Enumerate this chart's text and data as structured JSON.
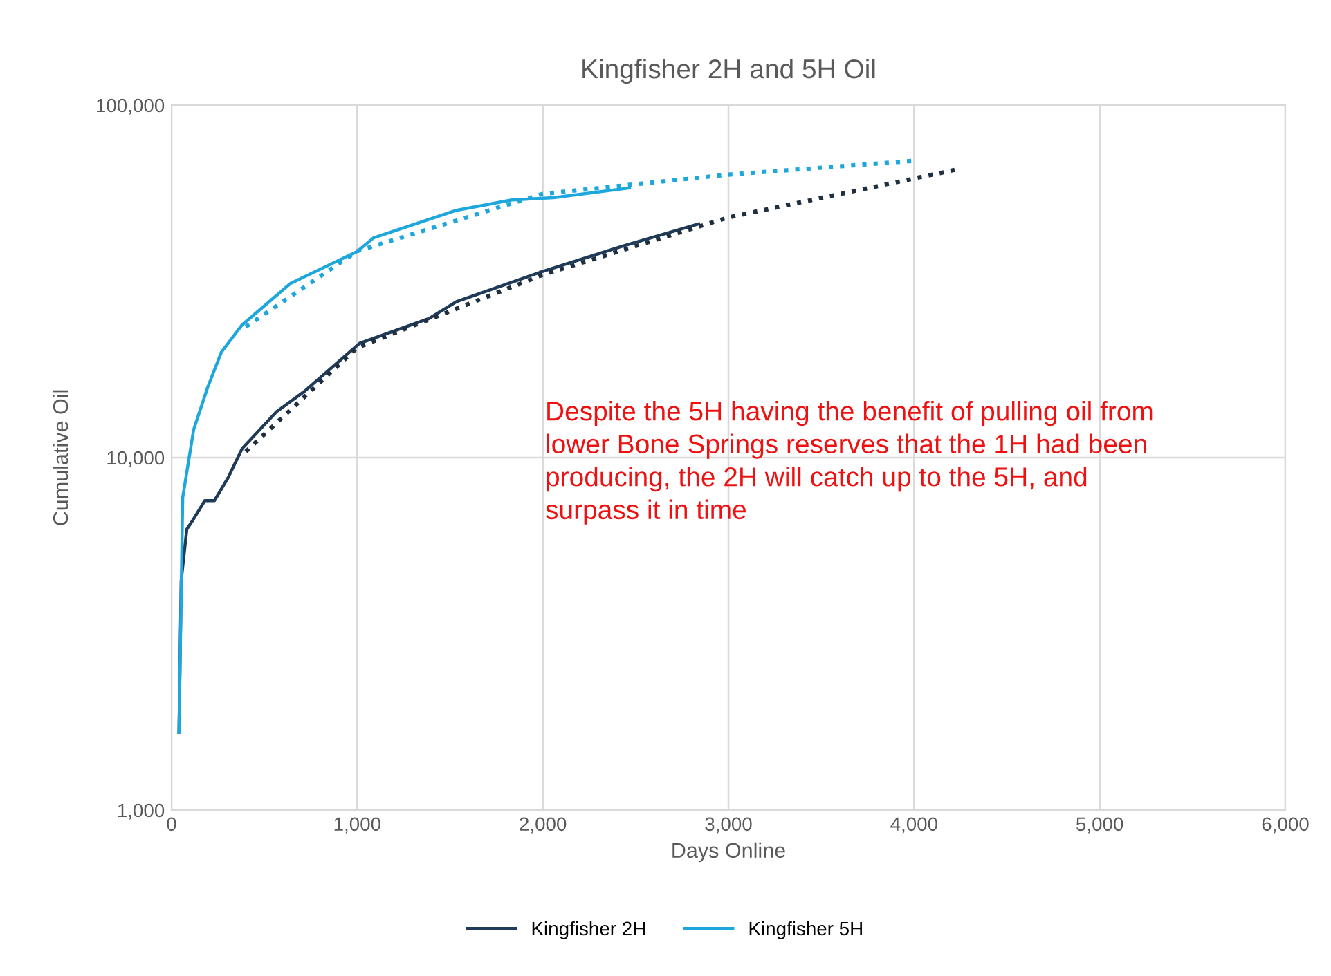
{
  "chart_data": {
    "type": "line",
    "title": "Kingfisher 2H and 5H Oil",
    "xlabel": "Days Online",
    "ylabel": "Cumulative Oil",
    "log": "y",
    "grid": true,
    "legend": "bottom",
    "xlim": [
      0,
      6000
    ],
    "xticks": [
      {
        "value": 0,
        "label": "0"
      },
      {
        "value": 1000,
        "label": "1,000"
      },
      {
        "value": 2000,
        "label": "2,000"
      },
      {
        "value": 3000,
        "label": "3,000"
      },
      {
        "value": 4000,
        "label": "4,000"
      },
      {
        "value": 5000,
        "label": "5,000"
      },
      {
        "value": 6000,
        "label": "6,000"
      }
    ],
    "ylim": [
      1000,
      100000
    ],
    "yticks": [
      {
        "value": 1000,
        "label": "1,000"
      },
      {
        "value": 10000,
        "label": "10,000"
      },
      {
        "value": 100000,
        "label": "100,000"
      }
    ],
    "series": [
      {
        "name": "Kingfisher 2H",
        "color": "#1f3b57",
        "x": [
          40,
          52,
          82,
          119,
          179,
          231,
          306,
          380,
          566,
          715,
          1013,
          1386,
          1535,
          1982,
          2429,
          2839
        ],
        "values": [
          1660,
          4480,
          6260,
          6700,
          7550,
          7550,
          8800,
          10600,
          13500,
          15400,
          21100,
          24800,
          27700,
          33500,
          39800,
          46000
        ]
      },
      {
        "name": "Kingfisher 5H",
        "color": "#1ea7dc",
        "x": [
          40,
          60,
          119,
          194,
          268,
          380,
          641,
          999,
          1088,
          1535,
          1833,
          2057,
          2467
        ],
        "values": [
          1660,
          7700,
          12000,
          15800,
          19900,
          23800,
          31200,
          38400,
          42000,
          50300,
          53800,
          54600,
          58200
        ]
      },
      {
        "type": "line",
        "line_style": "dotted",
        "color": "#1f2f3f",
        "x": [
          400,
          1000,
          2000,
          3000,
          4250
        ],
        "values": [
          10400,
          20500,
          33000,
          48000,
          66000
        ]
      },
      {
        "type": "line",
        "line_style": "dotted",
        "color": "#1ea7dc",
        "x": [
          400,
          1000,
          2000,
          3000,
          4000
        ],
        "values": [
          23500,
          38500,
          56000,
          63500,
          69500
        ]
      }
    ],
    "annotations": [
      "Despite the 5H having the benefit of pulling oil from lower Bone Springs reserves that the 1H had been producing, the 2H will catch up to the 5H, and surpass it in time"
    ]
  }
}
